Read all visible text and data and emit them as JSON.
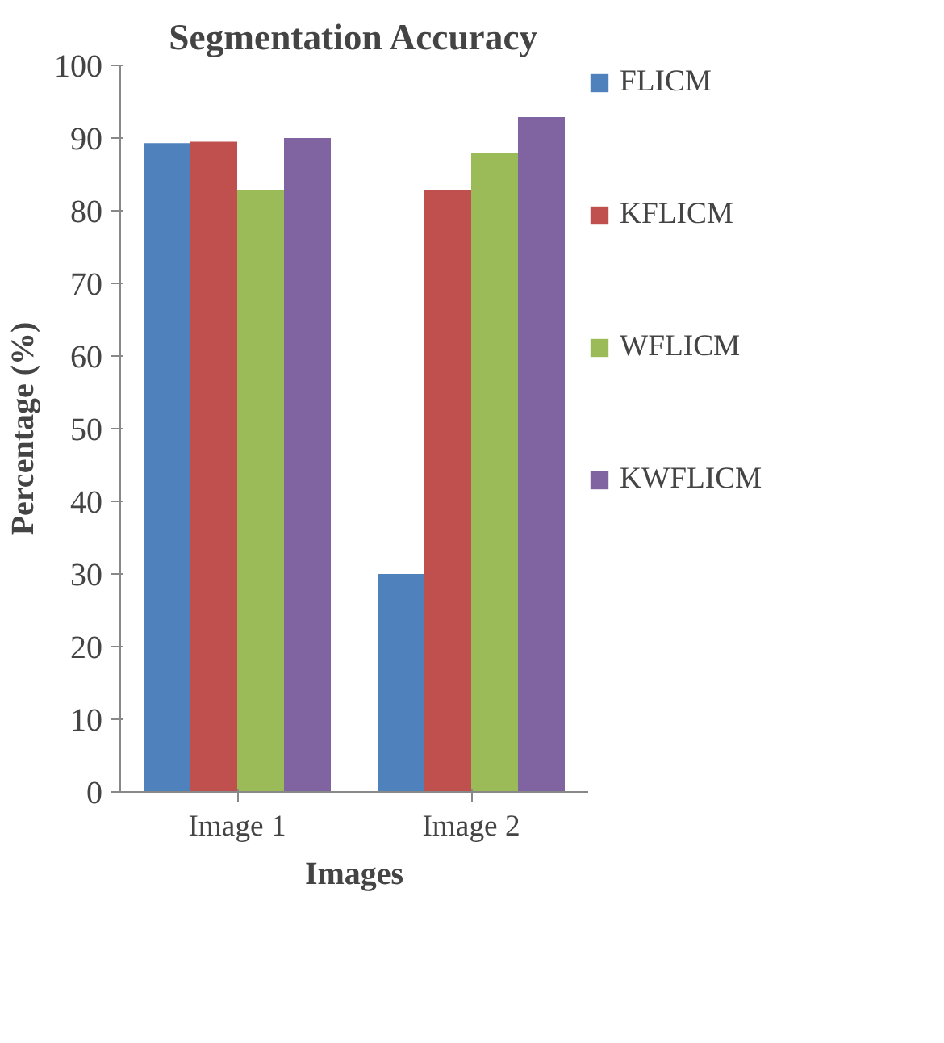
{
  "chart_data": {
    "type": "bar",
    "title": "Segmentation Accuracy",
    "xlabel": "Images",
    "ylabel": "Percentage (%)",
    "categories": [
      "Image 1",
      "Image 2"
    ],
    "series": [
      {
        "name": "FLICM",
        "color": "#4f81bd",
        "values": [
          89.3,
          30
        ]
      },
      {
        "name": "KFLICM",
        "color": "#c0504d",
        "values": [
          89.5,
          82.9
        ]
      },
      {
        "name": "WFLICM",
        "color": "#9bbb59",
        "values": [
          82.9,
          88
        ]
      },
      {
        "name": "KWFLICM",
        "color": "#8064a2",
        "values": [
          90,
          92.9
        ]
      }
    ],
    "ylim": [
      0,
      100
    ],
    "yticks": [
      0,
      10,
      20,
      30,
      40,
      50,
      60,
      70,
      80,
      90,
      100
    ],
    "grid": false,
    "legend": "right"
  }
}
